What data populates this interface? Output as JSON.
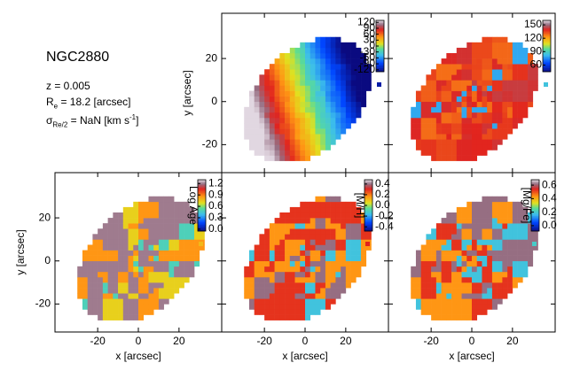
{
  "info": {
    "name": "NGC2880",
    "redshift": "z = 0.005",
    "re": {
      "symbol": "R",
      "sub": "e",
      "text": " = 18.2 [arcsec]"
    },
    "sigma": {
      "symbol": "σ",
      "sub": "Re/2",
      "text": " = NaN [km s",
      "sup": "-1",
      "end": "]"
    }
  },
  "chart_data": [
    {
      "type": "map",
      "xlim": [
        -41,
        41
      ],
      "ylim": [
        -33,
        41
      ],
      "xticks": [
        -20,
        0,
        20
      ],
      "yticks": [
        -20,
        0,
        20
      ],
      "tick_labels": {
        "x": false,
        "y": true
      },
      "ylabel": "y [arcsec]",
      "colorbar": {
        "lim": [
          -130,
          130
        ],
        "ticks": [
          -120,
          -90,
          -60,
          -30,
          0,
          30,
          60,
          90,
          120
        ]
      }
    },
    {
      "type": "map",
      "xlim": [
        -41,
        41
      ],
      "ylim": [
        -33,
        41
      ],
      "xticks": [
        -20,
        0,
        20
      ],
      "yticks": [
        -20,
        0,
        20
      ],
      "tick_labels": {
        "x": false,
        "y": false
      },
      "colorbar": {
        "lim": [
          45,
          160
        ],
        "ticks": [
          60,
          90,
          120,
          150
        ]
      }
    },
    {
      "type": "map",
      "xlim": [
        -41,
        41
      ],
      "ylim": [
        -33,
        41
      ],
      "xticks": [
        -20,
        0,
        20
      ],
      "yticks": [
        -20,
        0,
        20
      ],
      "tick_labels": {
        "x": true,
        "y": true
      },
      "xlabel": "x [arcsec]",
      "ylabel": "y [arcsec]",
      "colorbar": {
        "lim": [
          -0.05,
          1.3
        ],
        "ticks": [
          {
            "value": 0,
            "label": "0.0"
          },
          0.3,
          0.6,
          0.9,
          1.2
        ],
        "label": "Log Age"
      }
    },
    {
      "type": "map",
      "xlim": [
        -41,
        41
      ],
      "ylim": [
        -33,
        41
      ],
      "xticks": [
        -20,
        0,
        20
      ],
      "yticks": [
        -20,
        0,
        20
      ],
      "tick_labels": {
        "x": true,
        "y": false
      },
      "xlabel": "x [arcsec]",
      "colorbar": {
        "lim": [
          -0.48,
          0.48
        ],
        "ticks": [
          -0.4,
          -0.2,
          {
            "value": 0,
            "label": "0.0"
          },
          0.2,
          0.4
        ],
        "label": "[M/H]"
      }
    },
    {
      "type": "map",
      "xlim": [
        -41,
        41
      ],
      "ylim": [
        -33,
        41
      ],
      "xticks": [
        -20,
        0,
        20
      ],
      "yticks": [
        -20,
        0,
        20
      ],
      "tick_labels": {
        "x": true,
        "y": false
      },
      "xlabel": "x [arcsec]",
      "colorbar": {
        "lim": [
          -0.08,
          0.68
        ],
        "ticks": [
          {
            "value": 0,
            "label": "0.0"
          },
          0.2,
          0.4,
          0.6
        ],
        "label": "[Mg/Fe]"
      }
    }
  ]
}
